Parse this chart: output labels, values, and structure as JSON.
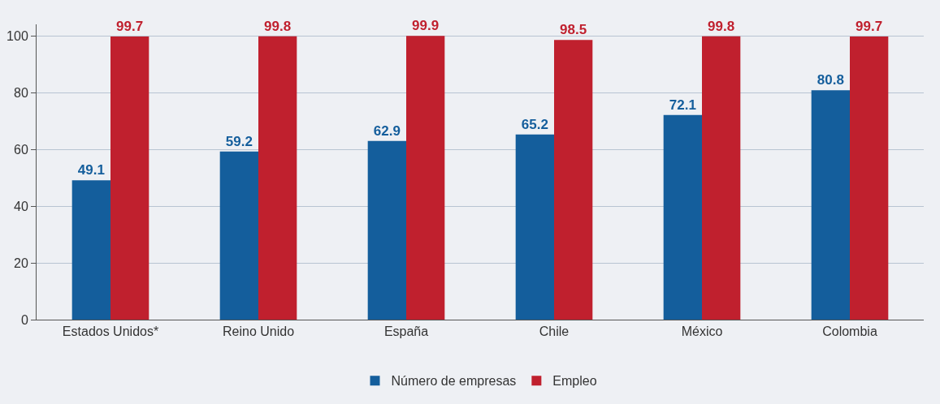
{
  "chart_data": {
    "type": "bar",
    "categories": [
      "Estados Unidos*",
      "Reino Unido",
      "España",
      "Chile",
      "México",
      "Colombia"
    ],
    "series": [
      {
        "name": "Número de empresas",
        "color": "#145e9c",
        "values": [
          49.1,
          59.2,
          62.9,
          65.2,
          72.1,
          80.8
        ]
      },
      {
        "name": "Empleo",
        "color": "#c0202e",
        "values": [
          99.7,
          99.8,
          99.9,
          98.5,
          99.8,
          99.7
        ]
      }
    ],
    "ylim": [
      0,
      104
    ],
    "yticks": [
      0,
      20,
      40,
      60,
      80,
      100
    ],
    "grid": "y",
    "legend": "bottom",
    "data_labels": true
  }
}
